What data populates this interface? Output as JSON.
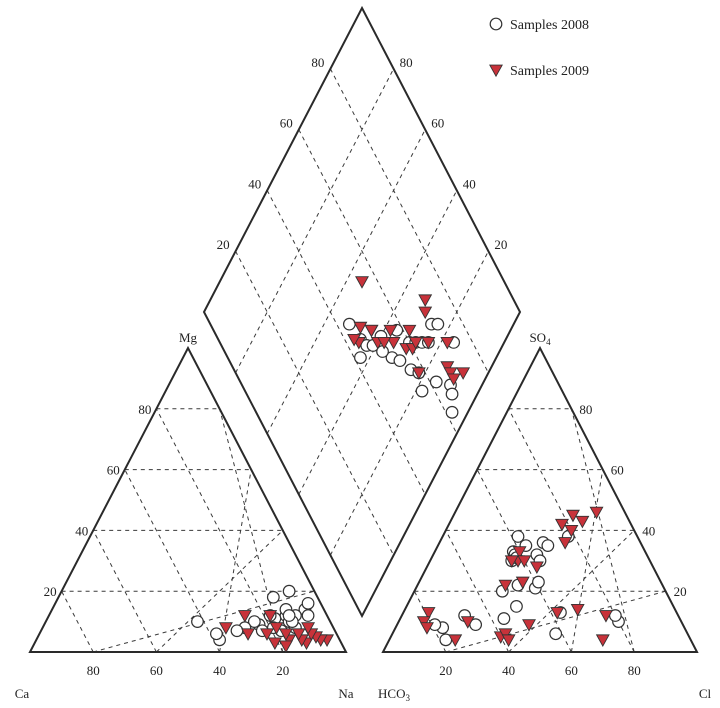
{
  "chart_data": {
    "type": "scatter",
    "legend": {
      "placement": "top-right",
      "entries": [
        "Samples 2008",
        "Samples 2009"
      ]
    },
    "axis_labels": {
      "cation_left": "Ca",
      "cation_right": "Na",
      "cation_top": "Mg",
      "anion_left": "HCO",
      "anion_left_sub": "3",
      "anion_right": "Cl",
      "anion_top": "SO",
      "anion_top_sub": "4"
    },
    "ticks": [
      "80",
      "60",
      "40",
      "20"
    ],
    "colors": {
      "samples_2008": "#ffffff",
      "samples_2009": "#c8323a",
      "outline": "#333333"
    },
    "series": [
      {
        "name": "Samples 2008",
        "marker": "open-circle",
        "cation": [
          [
            80,
            14
          ],
          [
            78,
            12
          ],
          [
            82,
            12
          ],
          [
            75,
            12
          ],
          [
            77,
            10
          ],
          [
            80,
            8
          ],
          [
            72,
            11
          ],
          [
            70,
            12
          ],
          [
            73,
            8
          ],
          [
            76,
            7
          ],
          [
            68,
            9
          ],
          [
            66,
            10
          ],
          [
            70,
            7
          ],
          [
            64,
            8
          ],
          [
            62,
            7
          ],
          [
            74,
            14
          ],
          [
            78,
            10
          ],
          [
            58,
            4
          ],
          [
            48,
            10
          ],
          [
            56,
            6
          ],
          [
            72,
            20
          ],
          [
            68,
            18
          ],
          [
            80,
            16
          ],
          [
            76,
            12
          ]
        ],
        "anion": [
          [
            25,
            33
          ],
          [
            24,
            38
          ],
          [
            28,
            35
          ],
          [
            26,
            32
          ],
          [
            26,
            30
          ],
          [
            27,
            31
          ],
          [
            40,
            38
          ],
          [
            33,
            36
          ],
          [
            35,
            35
          ],
          [
            33,
            32
          ],
          [
            35,
            30
          ],
          [
            38,
            21
          ],
          [
            38,
            23
          ],
          [
            28,
            20
          ],
          [
            32,
            22
          ],
          [
            35,
            15
          ],
          [
            33,
            11
          ],
          [
            50,
            13
          ],
          [
            52,
            6
          ],
          [
            20,
            12
          ],
          [
            18,
            4
          ],
          [
            15,
            8
          ],
          [
            25,
            9
          ],
          [
            70,
            10
          ],
          [
            68,
            12
          ],
          [
            12,
            9
          ]
        ],
        "diamond": [
          [
            42,
            43
          ],
          [
            45,
            46
          ],
          [
            44,
            52
          ],
          [
            46,
            43
          ],
          [
            52,
            33
          ],
          [
            48,
            41
          ],
          [
            50,
            37
          ],
          [
            54,
            30
          ],
          [
            52,
            40
          ],
          [
            58,
            36
          ],
          [
            60,
            30
          ],
          [
            56,
            25
          ],
          [
            58,
            22
          ],
          [
            62,
            28
          ],
          [
            64,
            26
          ],
          [
            66,
            24
          ],
          [
            62,
            15
          ],
          [
            56,
            18
          ],
          [
            62,
            5
          ],
          [
            70,
            26
          ],
          [
            72,
            24
          ],
          [
            74,
            16
          ],
          [
            66,
            10
          ],
          [
            65,
            8
          ]
        ]
      },
      {
        "name": "Samples 2009",
        "marker": "filled-triangle",
        "cation": [
          [
            92,
            4
          ],
          [
            90,
            4
          ],
          [
            88,
            5
          ],
          [
            86,
            3
          ],
          [
            86,
            6
          ],
          [
            84,
            4
          ],
          [
            82,
            6
          ],
          [
            80,
            4
          ],
          [
            78,
            6
          ],
          [
            76,
            3
          ],
          [
            74,
            8
          ],
          [
            72,
            6
          ],
          [
            70,
            12
          ],
          [
            62,
            12
          ],
          [
            58,
            8
          ],
          [
            66,
            6
          ],
          [
            84,
            8
          ],
          [
            80,
            2
          ]
        ],
        "anion": [
          [
            38,
            45
          ],
          [
            45,
            46
          ],
          [
            42,
            43
          ],
          [
            36,
            42
          ],
          [
            40,
            40
          ],
          [
            40,
            36
          ],
          [
            27,
            33
          ],
          [
            28,
            30
          ],
          [
            26,
            30
          ],
          [
            30,
            30
          ],
          [
            35,
            28
          ],
          [
            28,
            22
          ],
          [
            33,
            23
          ],
          [
            49,
            13
          ],
          [
            55,
            14
          ],
          [
            42,
            9
          ],
          [
            65,
            12
          ],
          [
            68,
            4
          ],
          [
            22,
            10
          ],
          [
            21,
            4
          ],
          [
            35,
            5
          ],
          [
            36,
            6
          ],
          [
            38,
            4
          ],
          [
            8,
            13
          ],
          [
            8,
            10
          ],
          [
            10,
            8
          ]
        ],
        "diamond": [
          [
            55,
            55
          ],
          [
            50,
            44
          ],
          [
            44,
            46
          ],
          [
            43,
            48
          ],
          [
            50,
            40
          ],
          [
            47,
            48
          ],
          [
            50,
            44
          ],
          [
            55,
            35
          ],
          [
            52,
            38
          ],
          [
            56,
            38
          ],
          [
            58,
            30
          ],
          [
            58,
            22
          ],
          [
            60,
            28
          ],
          [
            62,
            28
          ],
          [
            62,
            32
          ],
          [
            66,
            24
          ],
          [
            68,
            14
          ],
          [
            68,
            12
          ],
          [
            68,
            10
          ],
          [
            72,
            8
          ],
          [
            70,
            30
          ],
          [
            72,
            32
          ],
          [
            72,
            18
          ]
        ]
      }
    ]
  }
}
